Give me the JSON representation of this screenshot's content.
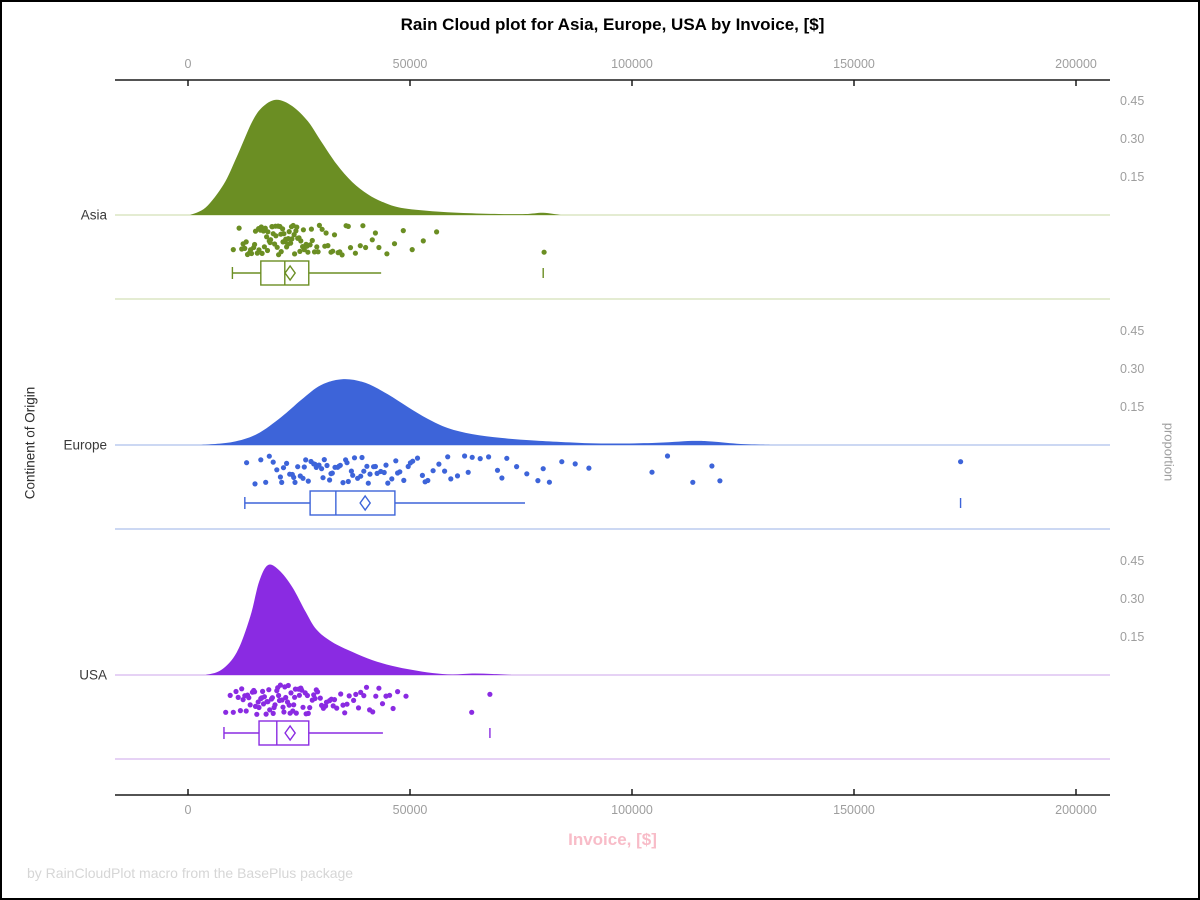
{
  "title": "Rain Cloud plot for Asia, Europe, USA by Invoice, [$]",
  "footer": "by RainCloudPlot macro from the BasePlus package",
  "axes": {
    "x_label": "Invoice, [$]",
    "x_label_color": "#f8bcc8",
    "y_label": "Continent of Origin",
    "y2_label": "proportion",
    "x_ticks": [
      {
        "value": 0,
        "label": "0"
      },
      {
        "value": 50000,
        "label": "50000"
      },
      {
        "value": 100000,
        "label": "100000"
      },
      {
        "value": 150000,
        "label": "150000"
      },
      {
        "value": 200000,
        "label": "200000"
      }
    ],
    "y2_ticks": [
      {
        "value": 0.45,
        "label": "0.45"
      },
      {
        "value": 0.3,
        "label": "0.30"
      },
      {
        "value": 0.15,
        "label": "0.15"
      }
    ],
    "tick_color": "#9e9e9e",
    "axis_line_color": "#1a1a1a"
  },
  "chart_data": {
    "type": "raincloud (half-violin density + jittered rain points + boxplot) per category",
    "title": "Rain Cloud plot for Asia, Europe, USA by Invoice, [$]",
    "xlabel": "Invoice, [$]",
    "ylabel": "Continent of Origin",
    "y2label": "proportion",
    "xlim": [
      0,
      200000
    ],
    "proportion_ticks_per_panel": [
      0.15,
      0.3,
      0.45
    ],
    "categories": [
      "Asia",
      "Europe",
      "USA"
    ],
    "groups": [
      {
        "name": "Asia",
        "color": "#6b8e23",
        "pale_color": "#dce5c3",
        "density": [
          [
            500,
            0
          ],
          [
            4000,
            0.03
          ],
          [
            8000,
            0.12
          ],
          [
            11000,
            0.23
          ],
          [
            14500,
            0.37
          ],
          [
            17000,
            0.43
          ],
          [
            20000,
            0.455
          ],
          [
            23500,
            0.43
          ],
          [
            27000,
            0.37
          ],
          [
            30000,
            0.29
          ],
          [
            33500,
            0.2
          ],
          [
            37000,
            0.13
          ],
          [
            40500,
            0.082
          ],
          [
            44000,
            0.05
          ],
          [
            48000,
            0.028
          ],
          [
            55000,
            0.015
          ],
          [
            62000,
            0.008
          ],
          [
            70000,
            0.004
          ],
          [
            76000,
            0.004
          ],
          [
            80000,
            0.009
          ],
          [
            84000,
            0
          ]
        ],
        "box": {
          "whisker_low": 10000,
          "q1": 16400,
          "median": 21800,
          "q3": 27200,
          "whisker_high": 43500,
          "mean": 23000,
          "outliers": [
            80000
          ]
        },
        "rain": [
          10200,
          11500,
          12100,
          12400,
          12800,
          13100,
          13400,
          13900,
          14100,
          14300,
          14800,
          15000,
          15200,
          15600,
          15900,
          16000,
          16300,
          16500,
          16700,
          17000,
          17200,
          17400,
          17700,
          17900,
          18000,
          18300,
          18500,
          18600,
          18900,
          19000,
          19200,
          19500,
          19700,
          19800,
          20100,
          20300,
          20400,
          20700,
          20900,
          21000,
          21300,
          21400,
          21600,
          21900,
          22000,
          22200,
          22500,
          22600,
          22800,
          23100,
          23300,
          23400,
          23700,
          23900,
          24000,
          24300,
          24500,
          24700,
          25000,
          25200,
          25400,
          25800,
          26000,
          26200,
          26600,
          26800,
          27000,
          27500,
          27800,
          28000,
          28500,
          29000,
          29300,
          29600,
          30200,
          30800,
          31100,
          31500,
          32200,
          32600,
          33000,
          33800,
          34200,
          34700,
          35600,
          36100,
          36600,
          37700,
          38800,
          39400,
          40000,
          41500,
          42200,
          43000,
          44800,
          46500,
          48500,
          50500,
          53000,
          56000,
          80200
        ]
      },
      {
        "name": "Europe",
        "color": "#3d64d9",
        "pale_color": "#bccbef",
        "density": [
          [
            3000,
            0
          ],
          [
            10000,
            0.012
          ],
          [
            15500,
            0.043
          ],
          [
            21000,
            0.11
          ],
          [
            25500,
            0.178
          ],
          [
            30000,
            0.237
          ],
          [
            35000,
            0.26
          ],
          [
            40000,
            0.245
          ],
          [
            45000,
            0.2
          ],
          [
            49500,
            0.15
          ],
          [
            54000,
            0.103
          ],
          [
            58500,
            0.067
          ],
          [
            64000,
            0.043
          ],
          [
            70500,
            0.028
          ],
          [
            77500,
            0.018
          ],
          [
            84000,
            0.012
          ],
          [
            93000,
            0.006
          ],
          [
            104500,
            0.008
          ],
          [
            113500,
            0.016
          ],
          [
            118000,
            0.014
          ],
          [
            124500,
            0.004
          ],
          [
            131500,
            0
          ]
        ],
        "box": {
          "whisker_low": 12800,
          "q1": 27500,
          "median": 33300,
          "q3": 46600,
          "whisker_high": 75900,
          "mean": 39900,
          "outliers": [
            174000
          ]
        },
        "rain": [
          13200,
          15100,
          16400,
          17500,
          18300,
          19200,
          20000,
          20800,
          21100,
          21500,
          22200,
          22900,
          23500,
          23800,
          24100,
          24700,
          25300,
          25900,
          26200,
          26500,
          27100,
          27700,
          28300,
          28600,
          28900,
          29500,
          30100,
          30400,
          30700,
          31300,
          31900,
          32200,
          32500,
          33100,
          33700,
          34000,
          34300,
          34900,
          35500,
          35800,
          36100,
          36800,
          37100,
          37500,
          38200,
          38900,
          39200,
          39600,
          40300,
          40600,
          41000,
          41800,
          42200,
          42600,
          43400,
          44200,
          44600,
          45000,
          45900,
          46800,
          47200,
          47700,
          48600,
          49600,
          50100,
          50600,
          51700,
          52800,
          53400,
          54000,
          55200,
          56500,
          57800,
          58500,
          59200,
          60700,
          62300,
          63100,
          64000,
          65800,
          67700,
          69700,
          70700,
          71800,
          74000,
          76300,
          78800,
          80000,
          81400,
          84200,
          87200,
          90300,
          104500,
          108000,
          113700,
          118000,
          119800,
          174000
        ]
      },
      {
        "name": "USA",
        "color": "#8a2be2",
        "pale_color": "#ddc4f2",
        "density": [
          [
            4000,
            0
          ],
          [
            7500,
            0.02
          ],
          [
            11000,
            0.09
          ],
          [
            14000,
            0.23
          ],
          [
            16000,
            0.367
          ],
          [
            18000,
            0.434
          ],
          [
            20500,
            0.414
          ],
          [
            23500,
            0.347
          ],
          [
            26500,
            0.249
          ],
          [
            29000,
            0.178
          ],
          [
            32500,
            0.13
          ],
          [
            37000,
            0.091
          ],
          [
            41500,
            0.059
          ],
          [
            46000,
            0.036
          ],
          [
            50500,
            0.02
          ],
          [
            55000,
            0.008
          ],
          [
            59500,
            0.002
          ],
          [
            64000,
            0.006
          ],
          [
            68500,
            0.004
          ],
          [
            73000,
            0
          ]
        ],
        "box": {
          "whisker_low": 8100,
          "q1": 16000,
          "median": 20000,
          "q3": 27200,
          "whisker_high": 43900,
          "mean": 23000,
          "outliers": [
            68000
          ]
        },
        "rain": [
          8500,
          9500,
          10200,
          10800,
          11300,
          11800,
          12100,
          12400,
          12800,
          13100,
          13400,
          13700,
          14000,
          14500,
          14800,
          15000,
          15200,
          15500,
          15800,
          16000,
          16400,
          16600,
          16800,
          17000,
          17200,
          17600,
          17800,
          18000,
          18200,
          18400,
          18800,
          19000,
          19200,
          19400,
          19600,
          20000,
          20200,
          20400,
          20600,
          20800,
          21200,
          21400,
          21600,
          21800,
          22000,
          22400,
          22600,
          22800,
          23000,
          23200,
          23600,
          23800,
          24000,
          24200,
          24400,
          24900,
          25100,
          25400,
          25600,
          25900,
          26400,
          26600,
          26900,
          27100,
          27400,
          28000,
          28300,
          28600,
          28900,
          29200,
          29800,
          30100,
          30500,
          31000,
          31200,
          31900,
          32300,
          32700,
          33000,
          33500,
          34400,
          34900,
          35300,
          35800,
          36300,
          37300,
          37800,
          38400,
          38900,
          39600,
          40200,
          40900,
          41600,
          42300,
          43000,
          43800,
          44600,
          45400,
          46200,
          47200,
          49100,
          63900,
          68000
        ]
      }
    ],
    "layout": {
      "grid": false,
      "panel_baselines_full_width": true,
      "x_axis_positions": [
        "top",
        "bottom"
      ],
      "y2_labels_position": "right"
    }
  }
}
